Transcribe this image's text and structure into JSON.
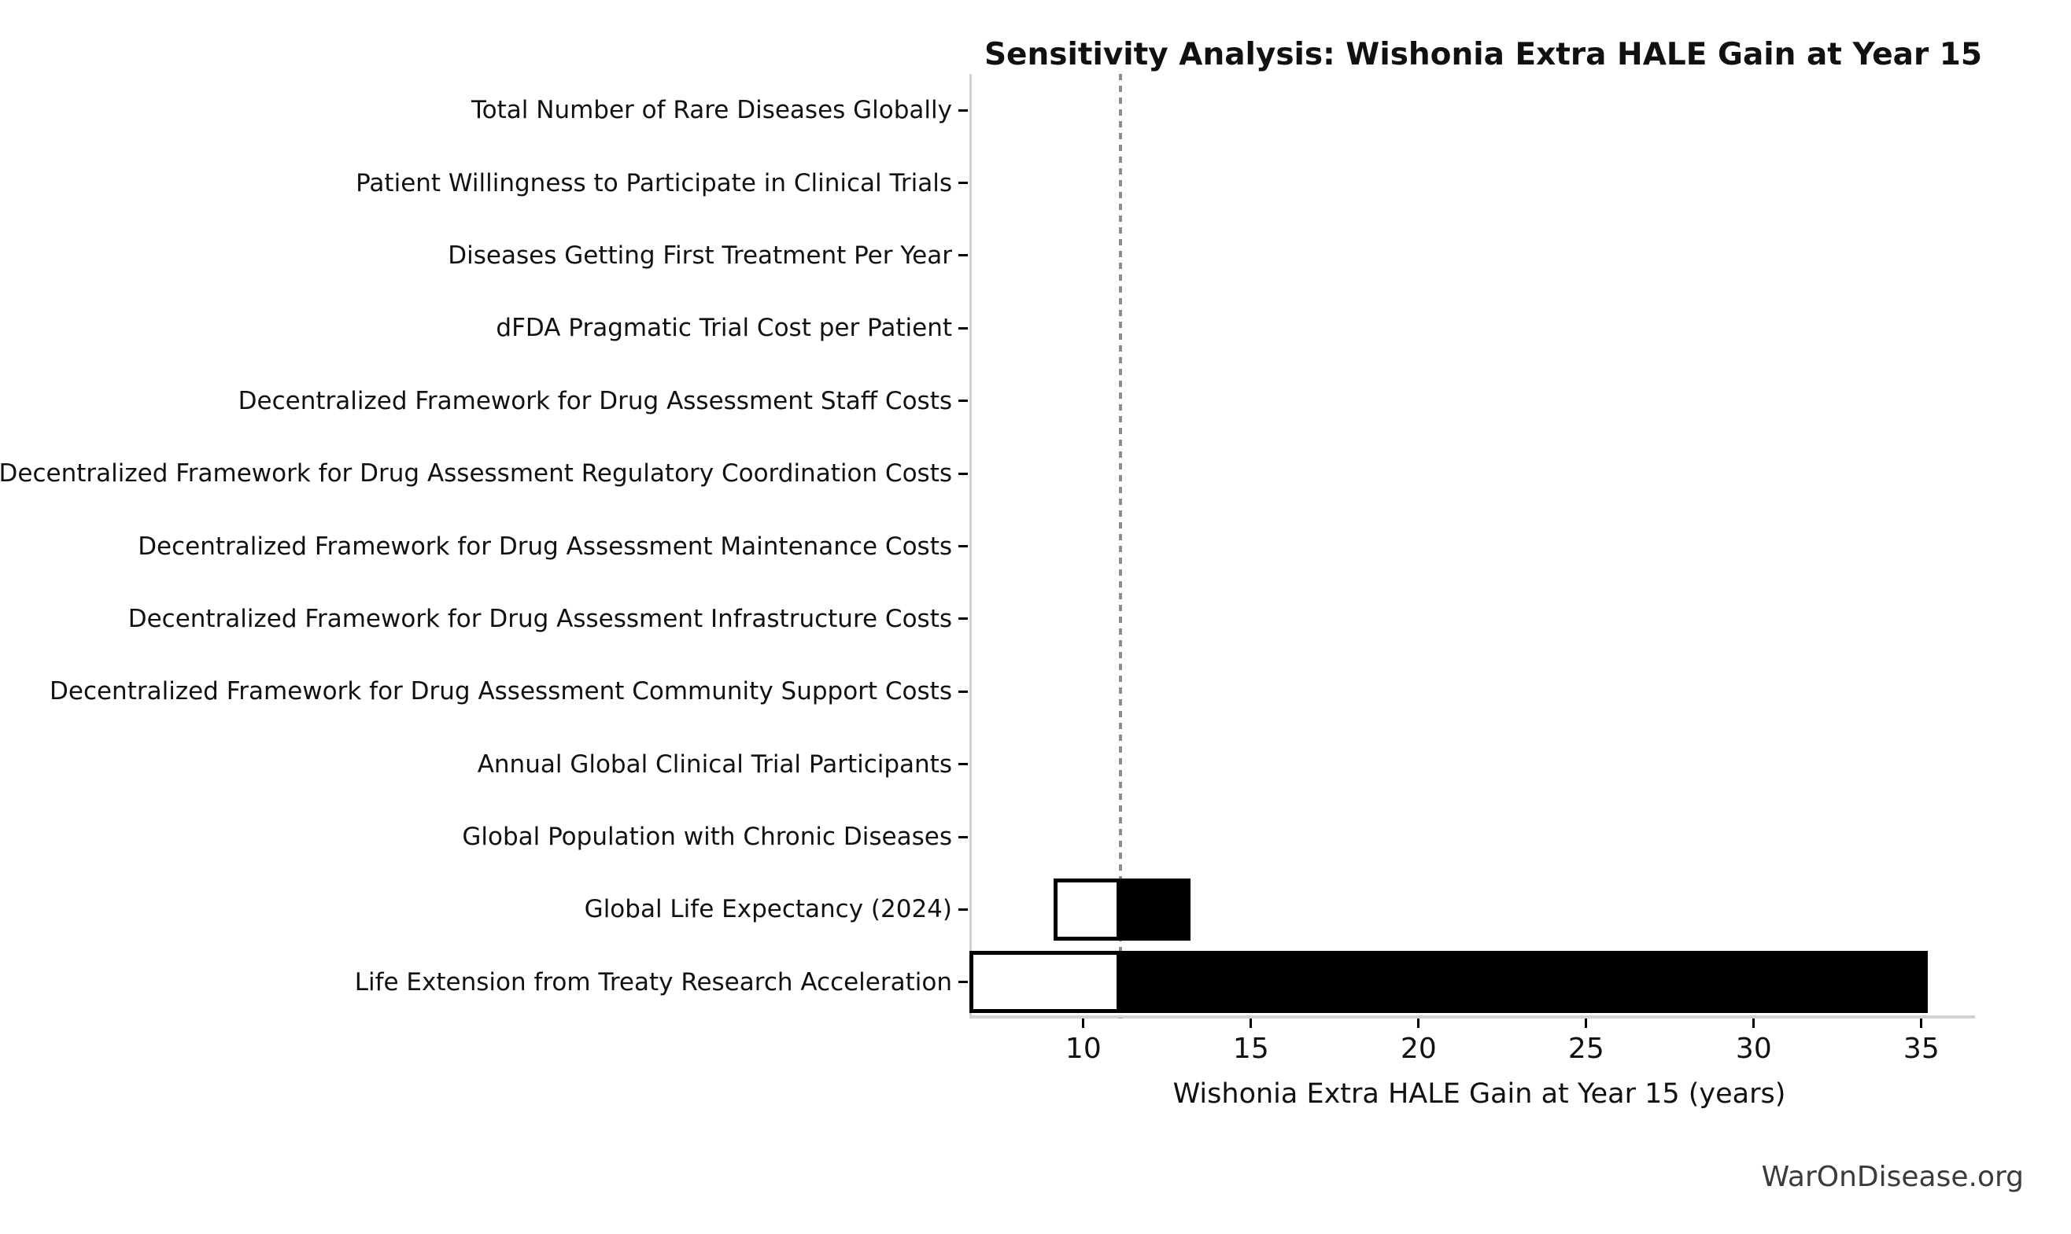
{
  "watermark": "WarOnDisease.org",
  "chart_data": {
    "type": "bar",
    "subtype": "tornado-sensitivity",
    "orientation": "horizontal",
    "title": "Sensitivity Analysis: Wishonia Extra HALE Gain at Year 15",
    "xlabel": "Wishonia Extra HALE Gain at Year 15 (years)",
    "baseline": 11.1,
    "xlim": [
      6.6,
      36.6
    ],
    "xticks": [
      10,
      15,
      20,
      25,
      30,
      35
    ],
    "grid": false,
    "legend": "none",
    "categories": [
      {
        "label": "Total Number of Rare Diseases Globally",
        "low": 11.1,
        "high": 11.1
      },
      {
        "label": "Patient Willingness to Participate in Clinical Trials",
        "low": 11.1,
        "high": 11.1
      },
      {
        "label": "Diseases Getting First Treatment Per Year",
        "low": 11.1,
        "high": 11.1
      },
      {
        "label": "dFDA Pragmatic Trial Cost per Patient",
        "low": 11.1,
        "high": 11.1
      },
      {
        "label": "Decentralized Framework for Drug Assessment Staff Costs",
        "low": 11.1,
        "high": 11.1
      },
      {
        "label": "Decentralized Framework for Drug Assessment Regulatory Coordination Costs",
        "low": 11.1,
        "high": 11.1
      },
      {
        "label": "Decentralized Framework for Drug Assessment Maintenance Costs",
        "low": 11.1,
        "high": 11.1
      },
      {
        "label": "Decentralized Framework for Drug Assessment Infrastructure Costs",
        "low": 11.1,
        "high": 11.1
      },
      {
        "label": "Decentralized Framework for Drug Assessment Community Support Costs",
        "low": 11.1,
        "high": 11.1
      },
      {
        "label": "Annual Global Clinical Trial Participants",
        "low": 11.1,
        "high": 11.1
      },
      {
        "label": "Global Population with Chronic Diseases",
        "low": 11.1,
        "high": 11.1
      },
      {
        "label": "Global Life Expectancy (2024)",
        "low": 9.1,
        "high": 13.2
      },
      {
        "label": "Life Extension from Treaty Research Acceleration",
        "low": 6.6,
        "high": 35.2
      }
    ],
    "colors": {
      "low_fill": "#ffffff",
      "high_fill": "#000000",
      "bar_edge": "#000000",
      "baseline_line": "#8c8c8c",
      "spine": "#d2d2d2",
      "tick": "#000000",
      "text": "#111111",
      "watermark": "#3b3b3b"
    }
  }
}
